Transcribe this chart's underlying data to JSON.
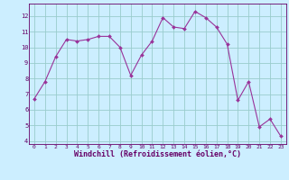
{
  "x": [
    0,
    1,
    2,
    3,
    4,
    5,
    6,
    7,
    8,
    9,
    10,
    11,
    12,
    13,
    14,
    15,
    16,
    17,
    18,
    19,
    20,
    21,
    22,
    23
  ],
  "y": [
    6.7,
    7.8,
    9.4,
    10.5,
    10.4,
    10.5,
    10.7,
    10.7,
    10.0,
    8.2,
    9.5,
    10.4,
    11.9,
    11.3,
    11.2,
    12.3,
    11.9,
    11.3,
    10.2,
    6.6,
    7.8,
    4.9,
    5.4,
    4.3
  ],
  "line_color": "#993399",
  "marker_color": "#993399",
  "bg_color": "#cceeff",
  "grid_color": "#99cccc",
  "xlabel": "Windchill (Refroidissement éolien,°C)",
  "xlim": [
    -0.5,
    23.5
  ],
  "ylim": [
    3.8,
    12.8
  ],
  "yticks": [
    4,
    5,
    6,
    7,
    8,
    9,
    10,
    11,
    12
  ],
  "xticks": [
    0,
    1,
    2,
    3,
    4,
    5,
    6,
    7,
    8,
    9,
    10,
    11,
    12,
    13,
    14,
    15,
    16,
    17,
    18,
    19,
    20,
    21,
    22,
    23
  ],
  "xlabel_color": "#660066",
  "axis_color": "#660066",
  "tick_color": "#660066",
  "spine_color": "#660066"
}
